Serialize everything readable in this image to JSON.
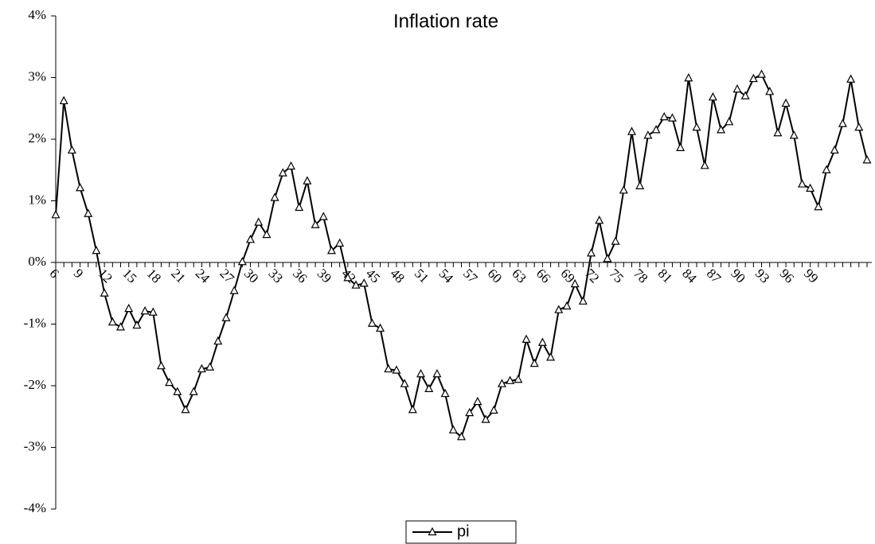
{
  "chart_data": {
    "type": "line",
    "title": "Inflation rate",
    "categories": [
      6,
      null,
      null,
      9,
      null,
      null,
      12,
      null,
      null,
      15,
      null,
      null,
      18,
      null,
      null,
      21,
      null,
      null,
      24,
      null,
      null,
      27,
      null,
      null,
      30,
      null,
      null,
      33,
      null,
      null,
      36,
      null,
      null,
      39,
      null,
      null,
      42,
      null,
      null,
      45,
      null,
      null,
      48,
      null,
      null,
      51,
      null,
      null,
      54,
      null,
      null,
      57,
      null,
      null,
      60,
      null,
      null,
      63,
      null,
      null,
      66,
      null,
      null,
      69,
      null,
      null,
      72,
      null,
      null,
      75,
      null,
      null,
      78,
      null,
      null,
      81,
      null,
      null,
      84,
      null,
      null,
      87,
      null,
      null,
      90,
      null,
      null,
      93,
      null,
      null,
      96,
      null,
      null,
      99,
      null,
      null,
      null,
      null,
      null,
      null,
      null
    ],
    "series": [
      {
        "name": "pi",
        "color": "#000000",
        "marker": "triangle",
        "values": [
          0.77,
          2.62,
          1.82,
          1.21,
          0.79,
          0.19,
          -0.5,
          -0.97,
          -1.05,
          -0.75,
          -1.02,
          -0.79,
          -0.81,
          -1.68,
          -1.95,
          -2.1,
          -2.39,
          -2.1,
          -1.73,
          -1.7,
          -1.28,
          -0.9,
          -0.46,
          0.01,
          0.37,
          0.65,
          0.45,
          1.05,
          1.45,
          1.56,
          0.89,
          1.32,
          0.61,
          0.74,
          0.19,
          0.31,
          -0.25,
          -0.37,
          -0.34,
          -0.99,
          -1.07,
          -1.73,
          -1.75,
          -1.97,
          -2.39,
          -1.81,
          -2.05,
          -1.81,
          -2.13,
          -2.72,
          -2.83,
          -2.44,
          -2.26,
          -2.55,
          -2.4,
          -1.97,
          -1.92,
          -1.9,
          -1.25,
          -1.64,
          -1.3,
          -1.54,
          -0.77,
          -0.71,
          -0.35,
          -0.63,
          0.15,
          0.68,
          0.06,
          0.34,
          1.17,
          2.12,
          1.24,
          2.06,
          2.15,
          2.36,
          2.34,
          1.86,
          2.99,
          2.19,
          1.57,
          2.68,
          2.15,
          2.28,
          2.81,
          2.7,
          2.98,
          3.05,
          2.77,
          2.1,
          2.58,
          2.06,
          1.27,
          1.2,
          0.9,
          1.5,
          1.82,
          2.25,
          2.97,
          2.19,
          1.66
        ]
      }
    ],
    "ylim": [
      -4,
      4
    ],
    "yticks": [
      {
        "value": -4,
        "label": "-4%"
      },
      {
        "value": -3,
        "label": "-3%"
      },
      {
        "value": -2,
        "label": "-2%"
      },
      {
        "value": -1,
        "label": "-1%"
      },
      {
        "value": 0,
        "label": "0%"
      },
      {
        "value": 1,
        "label": "1%"
      },
      {
        "value": 2,
        "label": "2%"
      },
      {
        "value": 3,
        "label": "3%"
      },
      {
        "value": 4,
        "label": "4%"
      }
    ],
    "grid": false,
    "legend": "bottom"
  }
}
